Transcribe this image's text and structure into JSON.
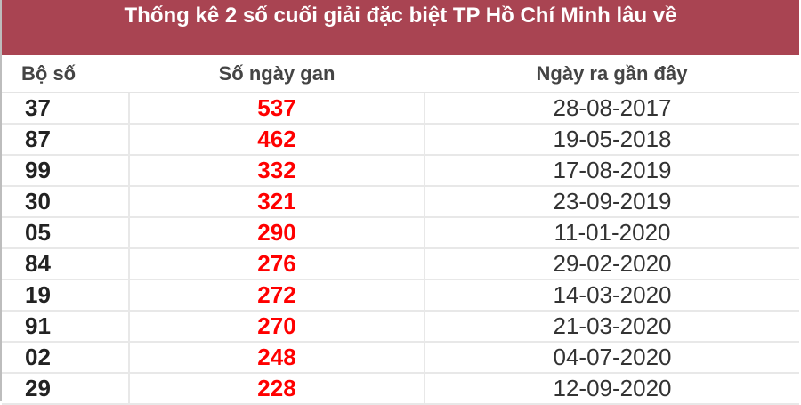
{
  "title": "Thống kê 2 số cuối giải đặc biệt TP Hồ Chí Minh lâu về",
  "colors": {
    "header_bg": "#a94452",
    "gan_text": "#ff0000"
  },
  "columns": [
    "Bộ số",
    "Số ngày gan",
    "Ngày ra gần đây"
  ],
  "rows": [
    {
      "number": "37",
      "days": "537",
      "date": "28-08-2017"
    },
    {
      "number": "87",
      "days": "462",
      "date": "19-05-2018"
    },
    {
      "number": "99",
      "days": "332",
      "date": "17-08-2019"
    },
    {
      "number": "30",
      "days": "321",
      "date": "23-09-2019"
    },
    {
      "number": "05",
      "days": "290",
      "date": "11-01-2020"
    },
    {
      "number": "84",
      "days": "276",
      "date": "29-02-2020"
    },
    {
      "number": "19",
      "days": "272",
      "date": "14-03-2020"
    },
    {
      "number": "91",
      "days": "270",
      "date": "21-03-2020"
    },
    {
      "number": "02",
      "days": "248",
      "date": "04-07-2020"
    },
    {
      "number": "29",
      "days": "228",
      "date": "12-09-2020"
    }
  ]
}
